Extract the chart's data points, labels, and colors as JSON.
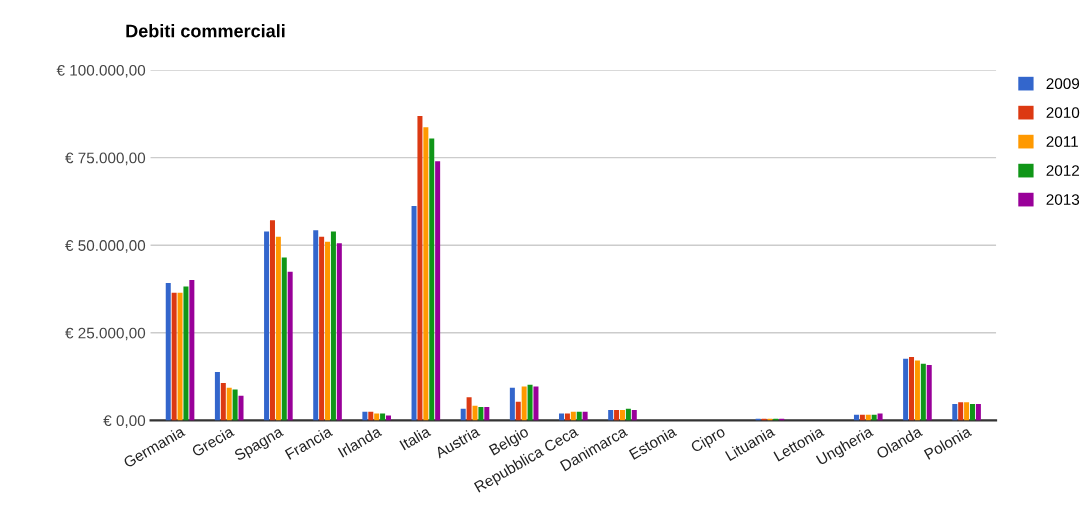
{
  "chart_data": {
    "type": "bar",
    "title": "Debiti commerciali",
    "categories": [
      "Germania",
      "Grecia",
      "Spagna",
      "Francia",
      "Irlanda",
      "Italia",
      "Austria",
      "Belgio",
      "Repubblica Ceca",
      "Danimarca",
      "Estonia",
      "Cipro",
      "Lituania",
      "Lettonia",
      "Ungheria",
      "Olanda",
      "Polonia"
    ],
    "series": [
      {
        "name": "2009",
        "color": "#3366cc",
        "values": [
          39200,
          13800,
          53900,
          54300,
          2500,
          61200,
          3300,
          9300,
          2000,
          3000,
          0,
          null,
          500,
          0,
          1600,
          17600,
          4700
        ]
      },
      {
        "name": "2010",
        "color": "#dc3912",
        "values": [
          36400,
          10700,
          57100,
          52400,
          2500,
          86900,
          6600,
          5300,
          2000,
          3000,
          0,
          null,
          500,
          0,
          1600,
          18100,
          5200
        ]
      },
      {
        "name": "2011",
        "color": "#ff9900",
        "values": [
          36400,
          9300,
          52400,
          51000,
          2000,
          83700,
          4200,
          9700,
          2500,
          3000,
          0,
          null,
          500,
          0,
          1600,
          17100,
          5200
        ]
      },
      {
        "name": "2012",
        "color": "#109618",
        "values": [
          38200,
          8800,
          46500,
          53900,
          2000,
          80500,
          3800,
          10200,
          2500,
          3300,
          0,
          null,
          500,
          0,
          1600,
          16200,
          4700
        ]
      },
      {
        "name": "2013",
        "color": "#990099",
        "values": [
          40100,
          7000,
          42400,
          50600,
          1400,
          74000,
          3800,
          9700,
          2500,
          3000,
          0,
          null,
          500,
          0,
          2000,
          15800,
          4700
        ]
      }
    ],
    "ylim": [
      0,
      100000
    ],
    "yticks": [
      {
        "value": 0,
        "label": "€ 0,00"
      },
      {
        "value": 25000,
        "label": "€ 25.000,00"
      },
      {
        "value": 50000,
        "label": "€ 50.000,00"
      },
      {
        "value": 75000,
        "label": "€ 75.000,00"
      },
      {
        "value": 100000,
        "label": "€ 100.000,00"
      }
    ],
    "grid": "y",
    "legend": "top right"
  }
}
